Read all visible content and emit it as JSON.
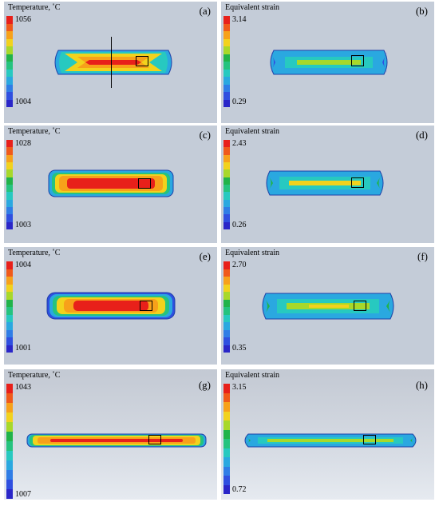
{
  "panels": [
    {
      "id": "a",
      "title": "Temperature, ˚C",
      "label": "(a)",
      "max": "1056",
      "min": "1004"
    },
    {
      "id": "b",
      "title": "Equivalent strain",
      "label": "(b)",
      "max": "3.14",
      "min": "0.29"
    },
    {
      "id": "c",
      "title": "Temperature, ˚C",
      "label": "(c)",
      "max": "1028",
      "min": "1003"
    },
    {
      "id": "d",
      "title": "Equivalent strain",
      "label": "(d)",
      "max": "2.43",
      "min": "0.26"
    },
    {
      "id": "e",
      "title": "Temperature, ˚C",
      "label": "(e)",
      "max": "1004",
      "min": "1001"
    },
    {
      "id": "f",
      "title": "Equivalent strain",
      "label": "(f)",
      "max": "2.70",
      "min": "0.35"
    },
    {
      "id": "g",
      "title": "Temperature, ˚C",
      "label": "(g)",
      "max": "1043",
      "min": "1007"
    },
    {
      "id": "h",
      "title": "Equivalent strain",
      "label": "(h)",
      "max": "3.15",
      "min": "0.72"
    }
  ],
  "colors": {
    "scale": [
      "#e8201a",
      "#f05a1a",
      "#f7a11a",
      "#f2d21d",
      "#a8d82a",
      "#21b34a",
      "#25c37f",
      "#27c9c0",
      "#2aa8e0",
      "#2f7de6",
      "#2f4fe0",
      "#2a26c8"
    ],
    "panel_bg": "#c4ccd8"
  }
}
